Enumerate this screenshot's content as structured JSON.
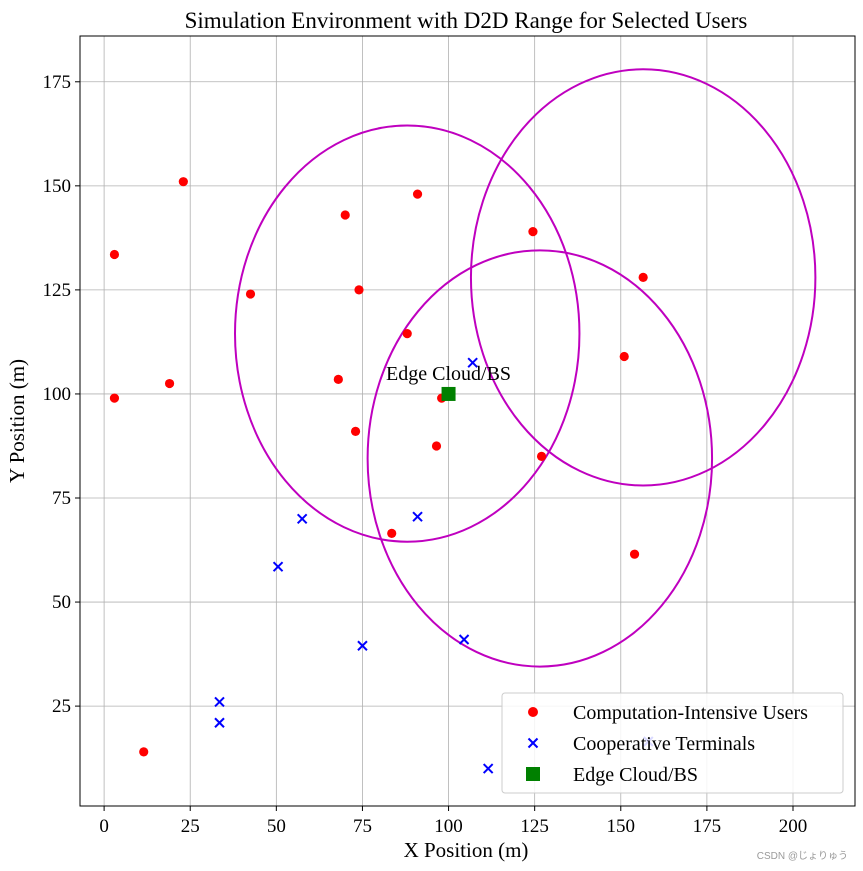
{
  "chart_data": {
    "type": "scatter",
    "title": "Simulation Environment with D2D Range for Selected Users",
    "xlabel": "X Position (m)",
    "ylabel": "Y Position (m)",
    "xlim": [
      -7,
      218
    ],
    "ylim": [
      1,
      186
    ],
    "xticks": [
      0,
      25,
      50,
      75,
      100,
      125,
      150,
      175,
      200
    ],
    "yticks": [
      25,
      50,
      75,
      100,
      125,
      150,
      175
    ],
    "grid": true,
    "legend_position": "lower-right",
    "series": [
      {
        "name": "Computation-Intensive Users",
        "marker": "circle",
        "color": "#ff0000",
        "points": [
          [
            23,
            151
          ],
          [
            3,
            133.5
          ],
          [
            42.5,
            124
          ],
          [
            70,
            143
          ],
          [
            91,
            148
          ],
          [
            74,
            125
          ],
          [
            124.5,
            139
          ],
          [
            156.5,
            128
          ],
          [
            88,
            114.5
          ],
          [
            151,
            109
          ],
          [
            68,
            103.5
          ],
          [
            19,
            102.5
          ],
          [
            3,
            99
          ],
          [
            98,
            99
          ],
          [
            73,
            91
          ],
          [
            96.5,
            87.5
          ],
          [
            127,
            85
          ],
          [
            83.5,
            66.5
          ],
          [
            154,
            61.5
          ],
          [
            11.5,
            14
          ]
        ]
      },
      {
        "name": "Cooperative Terminals",
        "marker": "x",
        "color": "#0000ff",
        "points": [
          [
            107,
            107.5
          ],
          [
            57.5,
            70
          ],
          [
            91,
            70.5
          ],
          [
            50.5,
            58.5
          ],
          [
            75,
            39.5
          ],
          [
            104.5,
            41
          ],
          [
            33.5,
            26
          ],
          [
            33.5,
            21
          ],
          [
            158,
            16.5
          ],
          [
            111.5,
            10
          ]
        ]
      },
      {
        "name": "Edge Cloud/BS",
        "marker": "square",
        "color": "#008000",
        "points": [
          [
            100,
            100
          ]
        ]
      }
    ],
    "d2d_ranges": [
      {
        "center": [
          88,
          114.5
        ],
        "radius": 50,
        "color": "#bf00bf"
      },
      {
        "center": [
          126.5,
          84.5
        ],
        "radius": 50,
        "color": "#bf00bf"
      },
      {
        "center": [
          156.5,
          128
        ],
        "radius": 50,
        "color": "#bf00bf"
      }
    ],
    "annotations": [
      {
        "text": "Edge Cloud/BS",
        "x": 100,
        "y": 100
      }
    ]
  },
  "watermark": "CSDN @じょりゅう"
}
